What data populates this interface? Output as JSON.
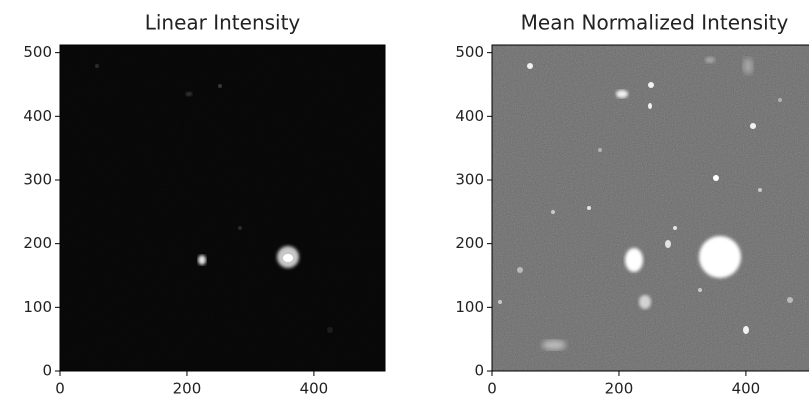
{
  "chart_data": [
    {
      "type": "image",
      "title": "Linear Intensity",
      "xlim": [
        0,
        512
      ],
      "ylim": [
        0,
        512
      ],
      "xticks": [
        0,
        200,
        400
      ],
      "yticks": [
        0,
        100,
        200,
        300,
        400,
        500
      ]
    },
    {
      "type": "image",
      "title": "Mean Normalized Intensity",
      "xlim": [
        0,
        512
      ],
      "ylim": [
        0,
        512
      ],
      "xticks": [
        0,
        200,
        400
      ],
      "yticks": [
        0,
        100,
        200,
        300,
        400,
        500
      ]
    }
  ]
}
